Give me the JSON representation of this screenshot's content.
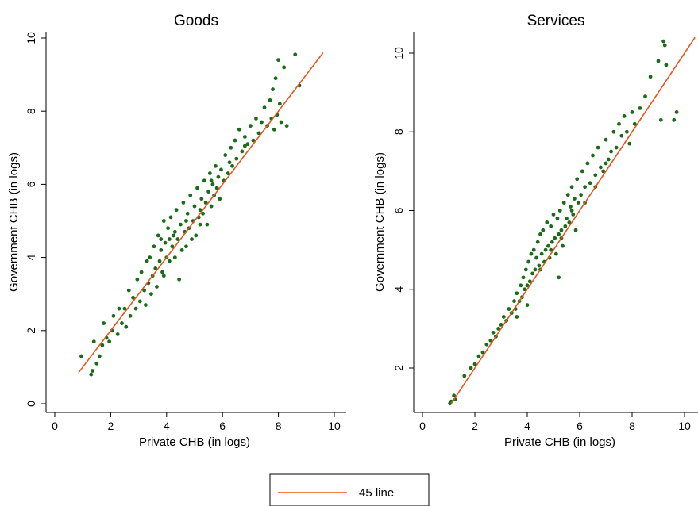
{
  "colors": {
    "points": "#1a6b1a",
    "line": "#e8531d",
    "axis": "#000000"
  },
  "chart_data": [
    {
      "type": "scatter",
      "title": "Goods",
      "xlabel": "Private CHB (in logs)",
      "ylabel": "Government CHB (in logs)",
      "xlim": [
        0,
        10
      ],
      "ylim": [
        0,
        10
      ],
      "xticks": [
        "0",
        "2",
        "4",
        "6",
        "8",
        "10"
      ],
      "yticks": [
        "0",
        "2",
        "4",
        "6",
        "8",
        "10"
      ],
      "line_45": {
        "name": "45 line",
        "x": [
          0.85,
          9.6
        ],
        "y": [
          0.85,
          9.6
        ]
      },
      "series": [
        {
          "values": [
            [
              0.95,
              1.3
            ],
            [
              1.3,
              0.8
            ],
            [
              1.35,
              0.9
            ],
            [
              1.4,
              1.7
            ],
            [
              1.5,
              1.1
            ],
            [
              1.6,
              1.3
            ],
            [
              1.7,
              1.6
            ],
            [
              1.75,
              2.2
            ],
            [
              1.85,
              1.8
            ],
            [
              1.95,
              1.7
            ],
            [
              2.05,
              2.0
            ],
            [
              2.1,
              2.4
            ],
            [
              2.25,
              1.9
            ],
            [
              2.3,
              2.6
            ],
            [
              2.4,
              2.2
            ],
            [
              2.5,
              2.6
            ],
            [
              2.55,
              2.1
            ],
            [
              2.65,
              3.1
            ],
            [
              2.7,
              2.4
            ],
            [
              2.8,
              2.9
            ],
            [
              2.9,
              2.6
            ],
            [
              2.95,
              3.4
            ],
            [
              3.05,
              2.8
            ],
            [
              3.1,
              3.6
            ],
            [
              3.2,
              3.1
            ],
            [
              3.25,
              2.7
            ],
            [
              3.3,
              3.9
            ],
            [
              3.35,
              3.3
            ],
            [
              3.4,
              4.0
            ],
            [
              3.45,
              3.0
            ],
            [
              3.5,
              3.5
            ],
            [
              3.55,
              4.3
            ],
            [
              3.6,
              3.7
            ],
            [
              3.65,
              3.2
            ],
            [
              3.7,
              4.6
            ],
            [
              3.75,
              3.9
            ],
            [
              3.8,
              4.2
            ],
            [
              3.85,
              3.6
            ],
            [
              3.9,
              5.0
            ],
            [
              3.95,
              4.4
            ],
            [
              4.0,
              4.0
            ],
            [
              4.05,
              4.8
            ],
            [
              4.1,
              3.9
            ],
            [
              4.15,
              5.1
            ],
            [
              4.2,
              4.3
            ],
            [
              4.25,
              4.6
            ],
            [
              4.3,
              4.0
            ],
            [
              4.35,
              5.3
            ],
            [
              4.4,
              4.5
            ],
            [
              4.45,
              3.4
            ],
            [
              4.5,
              4.9
            ],
            [
              4.55,
              4.2
            ],
            [
              4.6,
              5.5
            ],
            [
              4.65,
              4.7
            ],
            [
              4.7,
              4.3
            ],
            [
              4.75,
              5.2
            ],
            [
              4.8,
              4.8
            ],
            [
              4.85,
              5.7
            ],
            [
              4.9,
              4.5
            ],
            [
              4.95,
              5.0
            ],
            [
              5.0,
              5.4
            ],
            [
              5.05,
              4.6
            ],
            [
              5.1,
              5.9
            ],
            [
              5.15,
              5.1
            ],
            [
              5.2,
              4.9
            ],
            [
              5.25,
              5.6
            ],
            [
              5.3,
              5.2
            ],
            [
              5.35,
              6.1
            ],
            [
              5.4,
              5.5
            ],
            [
              5.45,
              4.9
            ],
            [
              5.5,
              5.8
            ],
            [
              5.55,
              6.3
            ],
            [
              5.6,
              5.4
            ],
            [
              5.65,
              6.0
            ],
            [
              5.7,
              5.7
            ],
            [
              5.75,
              6.5
            ],
            [
              5.8,
              5.9
            ],
            [
              5.85,
              6.2
            ],
            [
              5.9,
              5.6
            ],
            [
              5.95,
              6.4
            ],
            [
              6.05,
              6.1
            ],
            [
              6.1,
              6.8
            ],
            [
              6.2,
              6.3
            ],
            [
              6.3,
              7.0
            ],
            [
              6.35,
              6.5
            ],
            [
              6.45,
              7.2
            ],
            [
              6.5,
              6.7
            ],
            [
              6.6,
              7.5
            ],
            [
              6.7,
              6.9
            ],
            [
              6.8,
              7.3
            ],
            [
              6.9,
              7.1
            ],
            [
              7.0,
              7.6
            ],
            [
              7.1,
              7.2
            ],
            [
              7.2,
              7.8
            ],
            [
              7.3,
              7.4
            ],
            [
              7.4,
              7.7
            ],
            [
              7.5,
              8.1
            ],
            [
              7.6,
              7.6
            ],
            [
              7.7,
              8.3
            ],
            [
              7.75,
              7.8
            ],
            [
              7.8,
              8.6
            ],
            [
              7.85,
              7.5
            ],
            [
              7.9,
              8.9
            ],
            [
              7.95,
              7.9
            ],
            [
              8.0,
              9.4
            ],
            [
              8.05,
              8.2
            ],
            [
              8.1,
              7.7
            ],
            [
              8.2,
              9.2
            ],
            [
              8.3,
              7.6
            ],
            [
              8.6,
              9.55
            ],
            [
              8.75,
              8.7
            ],
            [
              4.3,
              4.7
            ],
            [
              4.7,
              5.0
            ],
            [
              5.2,
              5.3
            ],
            [
              3.8,
              4.5
            ],
            [
              4.1,
              4.5
            ],
            [
              5.6,
              6.1
            ],
            [
              6.25,
              6.6
            ],
            [
              6.8,
              7.05
            ],
            [
              3.9,
              3.5
            ]
          ]
        }
      ]
    },
    {
      "type": "scatter",
      "title": "Services",
      "xlabel": "Private CHB (in logs)",
      "ylabel": "Government CHB (in logs)",
      "xlim": [
        0,
        10
      ],
      "ylim": [
        2,
        10
      ],
      "xticks": [
        "0",
        "2",
        "4",
        "6",
        "8",
        "10"
      ],
      "yticks": [
        "2",
        "4",
        "6",
        "8",
        "10"
      ],
      "line_45": {
        "name": "45 line",
        "x": [
          1.1,
          10.4
        ],
        "y": [
          1.1,
          10.4
        ]
      },
      "series": [
        {
          "values": [
            [
              1.05,
              1.1
            ],
            [
              1.1,
              1.15
            ],
            [
              1.2,
              1.3
            ],
            [
              1.25,
              1.2
            ],
            [
              1.6,
              1.8
            ],
            [
              1.85,
              2.0
            ],
            [
              2.0,
              2.1
            ],
            [
              2.15,
              2.3
            ],
            [
              2.3,
              2.4
            ],
            [
              2.45,
              2.6
            ],
            [
              2.6,
              2.7
            ],
            [
              2.7,
              2.9
            ],
            [
              2.8,
              2.8
            ],
            [
              2.9,
              3.0
            ],
            [
              3.0,
              3.1
            ],
            [
              3.1,
              3.3
            ],
            [
              3.2,
              3.2
            ],
            [
              3.3,
              3.5
            ],
            [
              3.4,
              3.4
            ],
            [
              3.5,
              3.7
            ],
            [
              3.55,
              3.5
            ],
            [
              3.6,
              3.9
            ],
            [
              3.7,
              3.7
            ],
            [
              3.75,
              4.1
            ],
            [
              3.8,
              3.8
            ],
            [
              3.85,
              4.3
            ],
            [
              3.9,
              4.0
            ],
            [
              3.95,
              4.5
            ],
            [
              4.0,
              4.1
            ],
            [
              4.05,
              4.7
            ],
            [
              4.1,
              4.2
            ],
            [
              4.15,
              4.9
            ],
            [
              4.2,
              4.4
            ],
            [
              4.25,
              5.0
            ],
            [
              4.3,
              4.5
            ],
            [
              4.35,
              4.8
            ],
            [
              4.4,
              5.2
            ],
            [
              4.45,
              4.6
            ],
            [
              4.5,
              5.4
            ],
            [
              4.55,
              4.9
            ],
            [
              4.6,
              5.5
            ],
            [
              4.65,
              4.7
            ],
            [
              4.7,
              5.0
            ],
            [
              4.75,
              5.7
            ],
            [
              4.8,
              5.1
            ],
            [
              4.85,
              4.8
            ],
            [
              4.9,
              5.6
            ],
            [
              4.95,
              5.2
            ],
            [
              5.0,
              5.9
            ],
            [
              5.05,
              5.3
            ],
            [
              5.1,
              4.9
            ],
            [
              5.15,
              5.8
            ],
            [
              5.2,
              5.4
            ],
            [
              5.25,
              6.0
            ],
            [
              5.3,
              5.5
            ],
            [
              5.35,
              5.1
            ],
            [
              5.4,
              6.2
            ],
            [
              5.45,
              5.6
            ],
            [
              5.5,
              5.8
            ],
            [
              5.55,
              6.4
            ],
            [
              5.6,
              5.7
            ],
            [
              5.65,
              6.1
            ],
            [
              5.7,
              6.6
            ],
            [
              5.75,
              5.9
            ],
            [
              5.8,
              6.3
            ],
            [
              5.85,
              5.5
            ],
            [
              5.9,
              6.8
            ],
            [
              5.95,
              6.2
            ],
            [
              6.05,
              6.4
            ],
            [
              6.1,
              7.0
            ],
            [
              6.2,
              6.6
            ],
            [
              6.3,
              7.2
            ],
            [
              6.4,
              6.7
            ],
            [
              6.5,
              7.4
            ],
            [
              6.6,
              6.9
            ],
            [
              6.7,
              7.6
            ],
            [
              6.8,
              7.1
            ],
            [
              6.9,
              7.0
            ],
            [
              7.0,
              7.8
            ],
            [
              7.1,
              7.3
            ],
            [
              7.2,
              7.5
            ],
            [
              7.3,
              8.0
            ],
            [
              7.4,
              7.6
            ],
            [
              7.5,
              8.2
            ],
            [
              7.6,
              7.9
            ],
            [
              7.7,
              8.4
            ],
            [
              7.8,
              8.0
            ],
            [
              7.9,
              7.7
            ],
            [
              8.0,
              8.5
            ],
            [
              8.1,
              8.2
            ],
            [
              8.3,
              8.6
            ],
            [
              8.5,
              8.9
            ],
            [
              8.7,
              9.4
            ],
            [
              9.0,
              9.8
            ],
            [
              9.1,
              8.3
            ],
            [
              9.2,
              10.3
            ],
            [
              9.25,
              10.2
            ],
            [
              9.3,
              9.7
            ],
            [
              9.6,
              8.3
            ],
            [
              9.7,
              8.5
            ],
            [
              5.2,
              4.3
            ],
            [
              4.5,
              4.5
            ],
            [
              4.0,
              3.6
            ],
            [
              3.6,
              3.3
            ],
            [
              6.6,
              6.6
            ],
            [
              7.0,
              7.2
            ],
            [
              5.7,
              6.0
            ],
            [
              4.9,
              5.0
            ],
            [
              5.3,
              5.3
            ],
            [
              6.2,
              6.2
            ]
          ]
        }
      ]
    }
  ],
  "legend": {
    "placement": "bottom-center",
    "items": [
      {
        "label": "45 line"
      }
    ]
  }
}
